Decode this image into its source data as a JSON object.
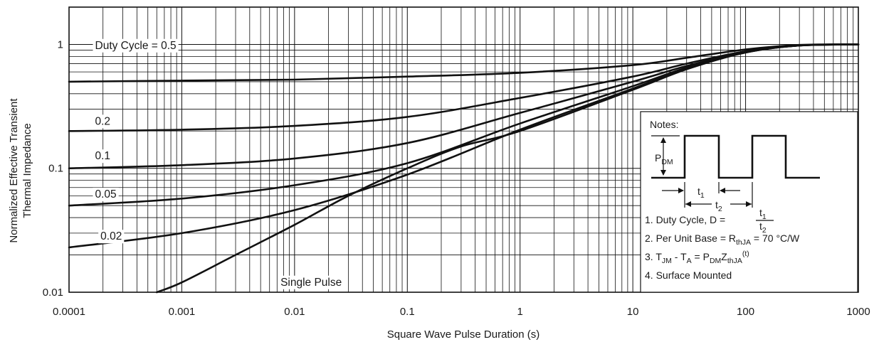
{
  "chart_data": {
    "type": "line",
    "xlabel": "Square Wave Pulse Duration (s)",
    "ylabel": [
      "Normalized Effective Transient",
      "Thermal Impedance"
    ],
    "x_scale": "log",
    "y_scale": "log",
    "xlim": [
      0.0001,
      1000
    ],
    "ylim": [
      0.01,
      2
    ],
    "grid": true,
    "x_ticks": [
      {
        "value": 0.0001,
        "label": "0.0001"
      },
      {
        "value": 0.001,
        "label": "0.001"
      },
      {
        "value": 0.01,
        "label": "0.01"
      },
      {
        "value": 0.1,
        "label": "0.1"
      },
      {
        "value": 1,
        "label": "1"
      },
      {
        "value": 10,
        "label": "10"
      },
      {
        "value": 100,
        "label": "100"
      },
      {
        "value": 1000,
        "label": "1000"
      }
    ],
    "y_ticks": [
      {
        "value": 0.01,
        "label": "0.01"
      },
      {
        "value": 0.1,
        "label": "0.1"
      },
      {
        "value": 1,
        "label": "1"
      }
    ],
    "series": [
      {
        "name": "Duty Cycle = 0.5",
        "label_at": [
          0.00017,
          0.92
        ],
        "points": [
          [
            0.0001,
            0.5
          ],
          [
            0.001,
            0.51
          ],
          [
            0.01,
            0.52
          ],
          [
            0.1,
            0.55
          ],
          [
            1,
            0.59
          ],
          [
            10,
            0.68
          ],
          [
            30,
            0.78
          ],
          [
            100,
            0.91
          ],
          [
            300,
            0.99
          ],
          [
            1000,
            1.0
          ]
        ]
      },
      {
        "name": "0.2",
        "label_at": [
          0.00017,
          0.225
        ],
        "points": [
          [
            0.0001,
            0.2
          ],
          [
            0.001,
            0.205
          ],
          [
            0.01,
            0.22
          ],
          [
            0.1,
            0.26
          ],
          [
            1,
            0.37
          ],
          [
            10,
            0.55
          ],
          [
            30,
            0.7
          ],
          [
            100,
            0.88
          ],
          [
            300,
            0.98
          ],
          [
            1000,
            1.0
          ]
        ]
      },
      {
        "name": "0.1",
        "label_at": [
          0.00017,
          0.118
        ],
        "points": [
          [
            0.0001,
            0.1
          ],
          [
            0.001,
            0.106
          ],
          [
            0.01,
            0.12
          ],
          [
            0.1,
            0.16
          ],
          [
            1,
            0.28
          ],
          [
            10,
            0.5
          ],
          [
            30,
            0.67
          ],
          [
            100,
            0.87
          ],
          [
            300,
            0.98
          ],
          [
            1000,
            1.0
          ]
        ]
      },
      {
        "name": "0.05",
        "label_at": [
          0.00017,
          0.058
        ],
        "points": [
          [
            0.0001,
            0.05
          ],
          [
            0.001,
            0.057
          ],
          [
            0.01,
            0.073
          ],
          [
            0.1,
            0.11
          ],
          [
            1,
            0.23
          ],
          [
            10,
            0.46
          ],
          [
            30,
            0.65
          ],
          [
            100,
            0.87
          ],
          [
            300,
            0.98
          ],
          [
            1000,
            1.0
          ]
        ]
      },
      {
        "name": "0.02",
        "label_at": [
          0.00019,
          0.0265
        ],
        "points": [
          [
            0.0001,
            0.023
          ],
          [
            0.001,
            0.03
          ],
          [
            0.01,
            0.046
          ],
          [
            0.1,
            0.089
          ],
          [
            1,
            0.205
          ],
          [
            10,
            0.44
          ],
          [
            30,
            0.64
          ],
          [
            100,
            0.86
          ],
          [
            300,
            0.98
          ],
          [
            1000,
            1.0
          ]
        ]
      },
      {
        "name": "Single Pulse",
        "label_at": [
          0.0075,
          0.0113
        ],
        "points": [
          [
            0.0006,
            0.01
          ],
          [
            0.001,
            0.012
          ],
          [
            0.003,
            0.02
          ],
          [
            0.01,
            0.035
          ],
          [
            0.03,
            0.06
          ],
          [
            0.1,
            0.1
          ],
          [
            0.3,
            0.15
          ],
          [
            1,
            0.2
          ],
          [
            10,
            0.43
          ],
          [
            30,
            0.63
          ],
          [
            100,
            0.86
          ],
          [
            300,
            0.98
          ],
          [
            1000,
            1.0
          ]
        ]
      }
    ],
    "notes": {
      "title": "Notes:",
      "pdm": "P",
      "pdm_sub": "DM",
      "t1": "t",
      "t1_sub": "1",
      "t2": "t",
      "t2_sub": "2",
      "line1_prefix": "1. Duty Cycle, D = ",
      "frac_num": "t",
      "frac_num_sub": "1",
      "frac_den": "t",
      "frac_den_sub": "2",
      "line2_prefix": "2. Per Unit Base = R",
      "line2_sub": "thJA",
      "line2_suffix": " = 70 °C/W",
      "line3_a": "3. T",
      "line3_a_sub": "JM",
      "line3_b": " - T",
      "line3_b_sub": "A",
      "line3_c": " = P",
      "line3_c_sub": "DM",
      "line3_d": "Z",
      "line3_d_sub": "thJA",
      "line3_sup": "(t)",
      "line4": "4. Surface Mounted"
    }
  }
}
